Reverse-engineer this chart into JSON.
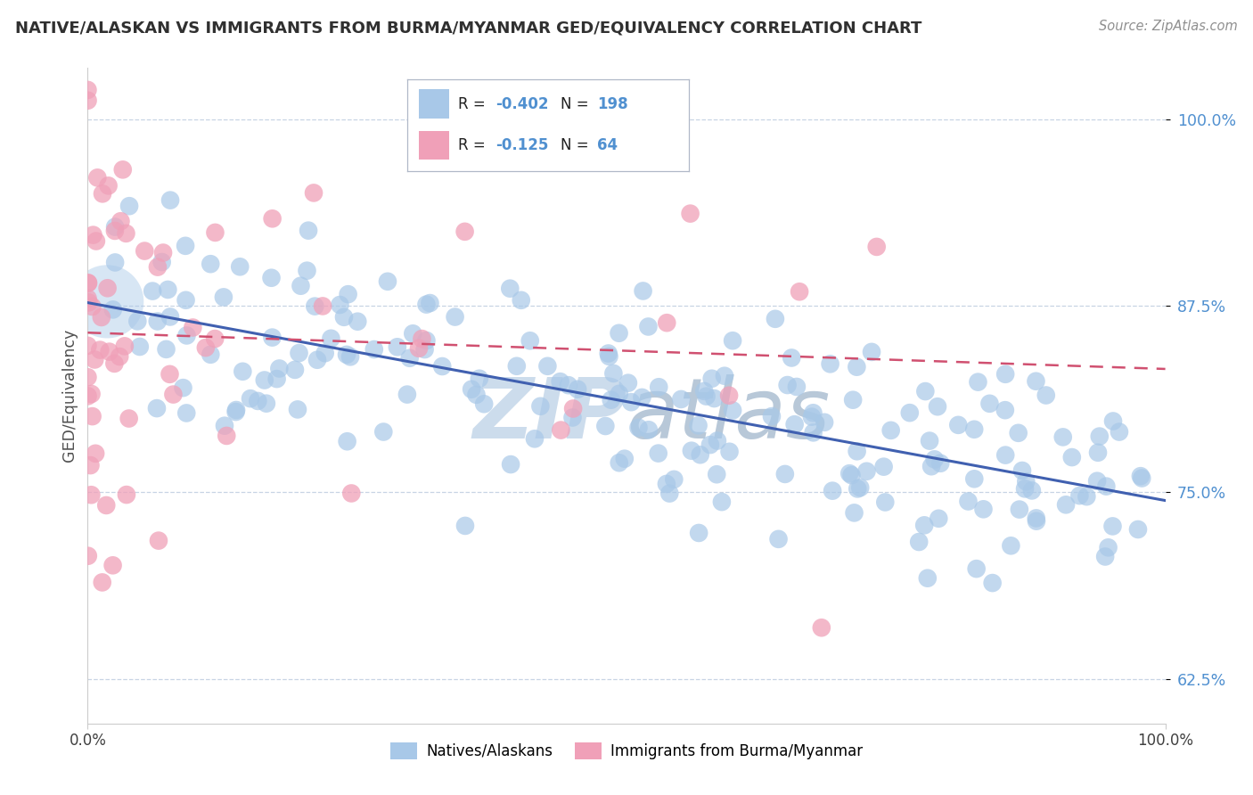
{
  "title": "NATIVE/ALASKAN VS IMMIGRANTS FROM BURMA/MYANMAR GED/EQUIVALENCY CORRELATION CHART",
  "source": "Source: ZipAtlas.com",
  "ylabel": "GED/Equivalency",
  "xlim": [
    0,
    1
  ],
  "ylim": [
    0.595,
    1.035
  ],
  "yticks": [
    0.625,
    0.75,
    0.875,
    1.0
  ],
  "ytick_labels": [
    "62.5%",
    "75.0%",
    "87.5%",
    "100.0%"
  ],
  "legend_R1": "-0.402",
  "legend_N1": "198",
  "legend_R2": "-0.125",
  "legend_N2": "64",
  "blue_color": "#a8c8e8",
  "pink_color": "#f0a0b8",
  "blue_line_color": "#4060b0",
  "pink_line_color": "#d05070",
  "title_color": "#303030",
  "source_color": "#909090",
  "watermark_color": "#ccdcec",
  "background_color": "#ffffff",
  "grid_color": "#c8d4e4",
  "ytick_color": "#5090d0",
  "seed_blue": 17,
  "seed_pink": 7,
  "n_blue": 198,
  "n_pink": 64
}
